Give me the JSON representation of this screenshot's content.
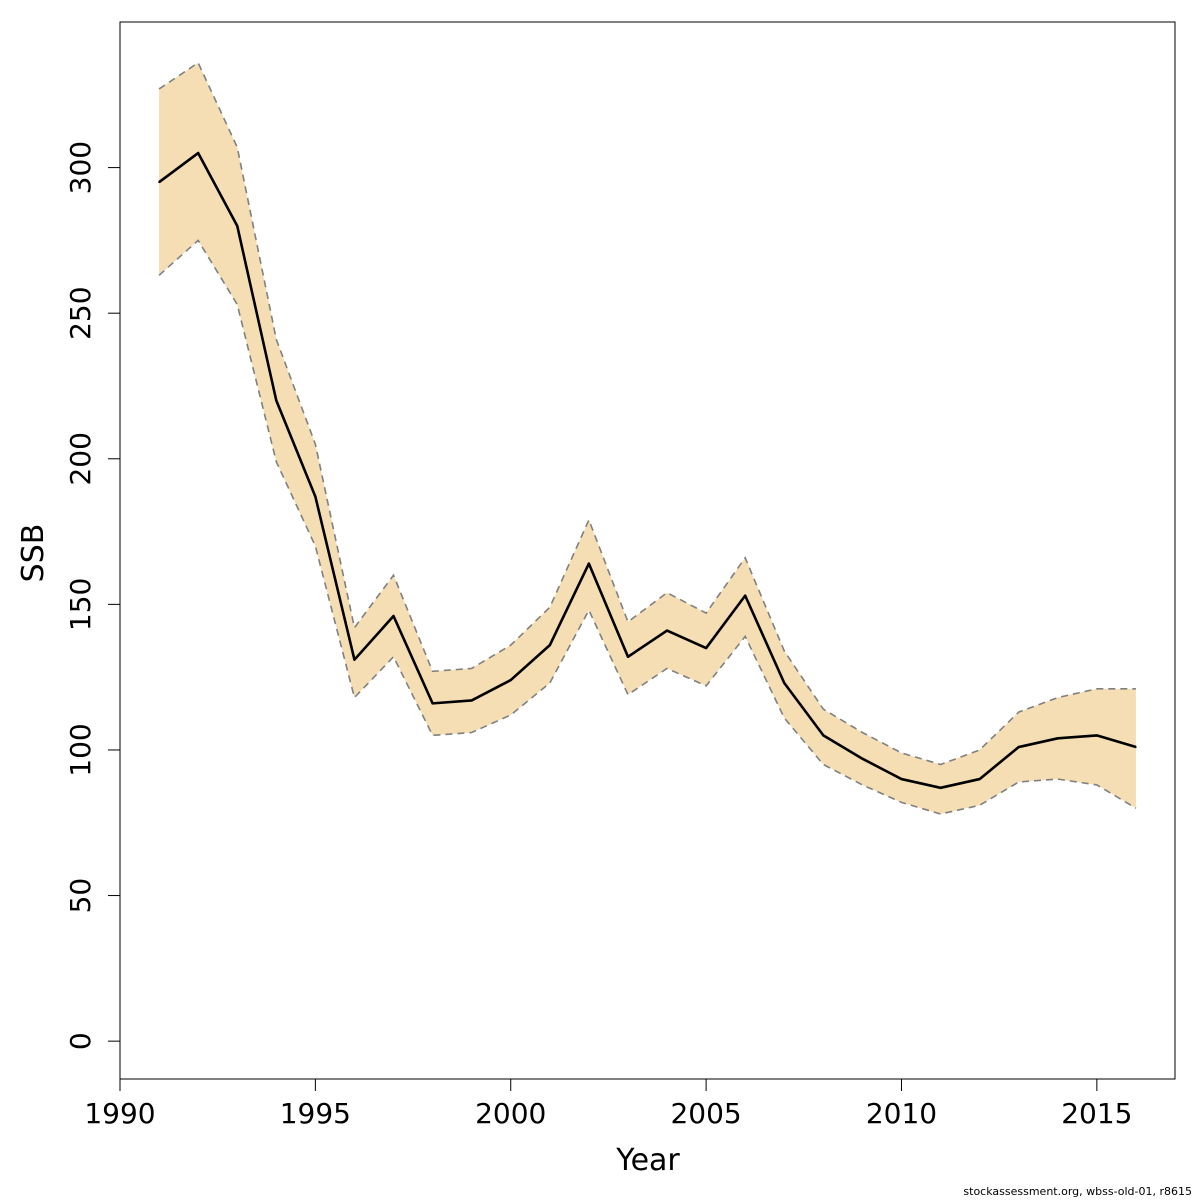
{
  "chart_data": {
    "type": "line",
    "xlabel": "Year",
    "ylabel": "SSB",
    "xlim": [
      1990,
      2017
    ],
    "ylim": [
      -13,
      350
    ],
    "xticks": [
      1990,
      1995,
      2000,
      2005,
      2010,
      2015
    ],
    "yticks": [
      0,
      50,
      100,
      150,
      200,
      250,
      300
    ],
    "band_color": "#F5DEB3",
    "line_color": "#000000",
    "bound_color": "#808080",
    "x": [
      1991,
      1992,
      1993,
      1994,
      1995,
      1996,
      1997,
      1998,
      1999,
      2000,
      2001,
      2002,
      2003,
      2004,
      2005,
      2006,
      2007,
      2008,
      2009,
      2010,
      2011,
      2012,
      2013,
      2014,
      2015,
      2016
    ],
    "series": [
      {
        "values": [
          295,
          305,
          280,
          220,
          187,
          131,
          146,
          116,
          117,
          124,
          136,
          164,
          132,
          141,
          135,
          153,
          123,
          105,
          97,
          90,
          87,
          90,
          101,
          104,
          105,
          101
        ]
      },
      {
        "values": [
          327,
          336,
          307,
          241,
          205,
          142,
          160,
          127,
          128,
          136,
          149,
          179,
          144,
          154,
          147,
          166,
          134,
          114,
          106,
          99,
          95,
          100,
          113,
          118,
          121,
          121
        ]
      },
      {
        "values": [
          263,
          275,
          253,
          199,
          170,
          118,
          132,
          105,
          106,
          112,
          123,
          148,
          119,
          128,
          122,
          139,
          111,
          95,
          88,
          82,
          78,
          81,
          89,
          90,
          88,
          80
        ]
      }
    ]
  },
  "footer": {
    "text": "stockassessment.org, wbss-old-01, r8615"
  }
}
